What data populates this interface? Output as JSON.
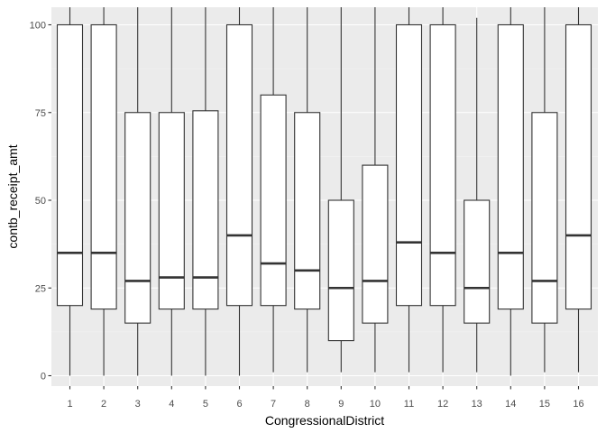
{
  "chart_data": {
    "type": "boxplot",
    "xlabel": "CongressionalDistrict",
    "ylabel": "contb_receipt_amt",
    "categories": [
      "1",
      "2",
      "3",
      "4",
      "5",
      "6",
      "7",
      "8",
      "9",
      "10",
      "11",
      "12",
      "13",
      "14",
      "15",
      "16"
    ],
    "ylim": [
      -5,
      105
    ],
    "yticks": [
      0,
      25,
      50,
      75,
      100
    ],
    "grid": true,
    "series": [
      {
        "category": "1",
        "lower_whisker": 0,
        "q1": 20,
        "median": 35,
        "q3": 100,
        "upper_whisker": 105
      },
      {
        "category": "2",
        "lower_whisker": 0,
        "q1": 19,
        "median": 35,
        "q3": 100,
        "upper_whisker": 105
      },
      {
        "category": "3",
        "lower_whisker": 0,
        "q1": 15,
        "median": 27,
        "q3": 75,
        "upper_whisker": 105
      },
      {
        "category": "4",
        "lower_whisker": 0,
        "q1": 19,
        "median": 28,
        "q3": 75,
        "upper_whisker": 105
      },
      {
        "category": "5",
        "lower_whisker": 0,
        "q1": 19,
        "median": 28,
        "q3": 75.5,
        "upper_whisker": 105
      },
      {
        "category": "6",
        "lower_whisker": 0,
        "q1": 20,
        "median": 40,
        "q3": 100,
        "upper_whisker": 105
      },
      {
        "category": "7",
        "lower_whisker": 1,
        "q1": 20,
        "median": 32,
        "q3": 80,
        "upper_whisker": 105
      },
      {
        "category": "8",
        "lower_whisker": 1,
        "q1": 19,
        "median": 30,
        "q3": 75,
        "upper_whisker": 105
      },
      {
        "category": "9",
        "lower_whisker": 1,
        "q1": 10,
        "median": 25,
        "q3": 50,
        "upper_whisker": 105
      },
      {
        "category": "10",
        "lower_whisker": 1,
        "q1": 15,
        "median": 27,
        "q3": 60,
        "upper_whisker": 105
      },
      {
        "category": "11",
        "lower_whisker": 1,
        "q1": 20,
        "median": 38,
        "q3": 100,
        "upper_whisker": 105
      },
      {
        "category": "12",
        "lower_whisker": 1,
        "q1": 20,
        "median": 35,
        "q3": 100,
        "upper_whisker": 105
      },
      {
        "category": "13",
        "lower_whisker": 1,
        "q1": 15,
        "median": 25,
        "q3": 50,
        "upper_whisker": 102
      },
      {
        "category": "14",
        "lower_whisker": 0,
        "q1": 19,
        "median": 35,
        "q3": 100,
        "upper_whisker": 105
      },
      {
        "category": "15",
        "lower_whisker": 1,
        "q1": 15,
        "median": 27,
        "q3": 75,
        "upper_whisker": 105
      },
      {
        "category": "16",
        "lower_whisker": 1,
        "q1": 19,
        "median": 40,
        "q3": 100,
        "upper_whisker": 105
      }
    ],
    "colors": {
      "panel_background": "#ebebeb",
      "grid_major": "#ffffff",
      "box_fill": "#ffffff",
      "box_stroke": "#333333",
      "tick_text": "#4d4d4d"
    }
  }
}
